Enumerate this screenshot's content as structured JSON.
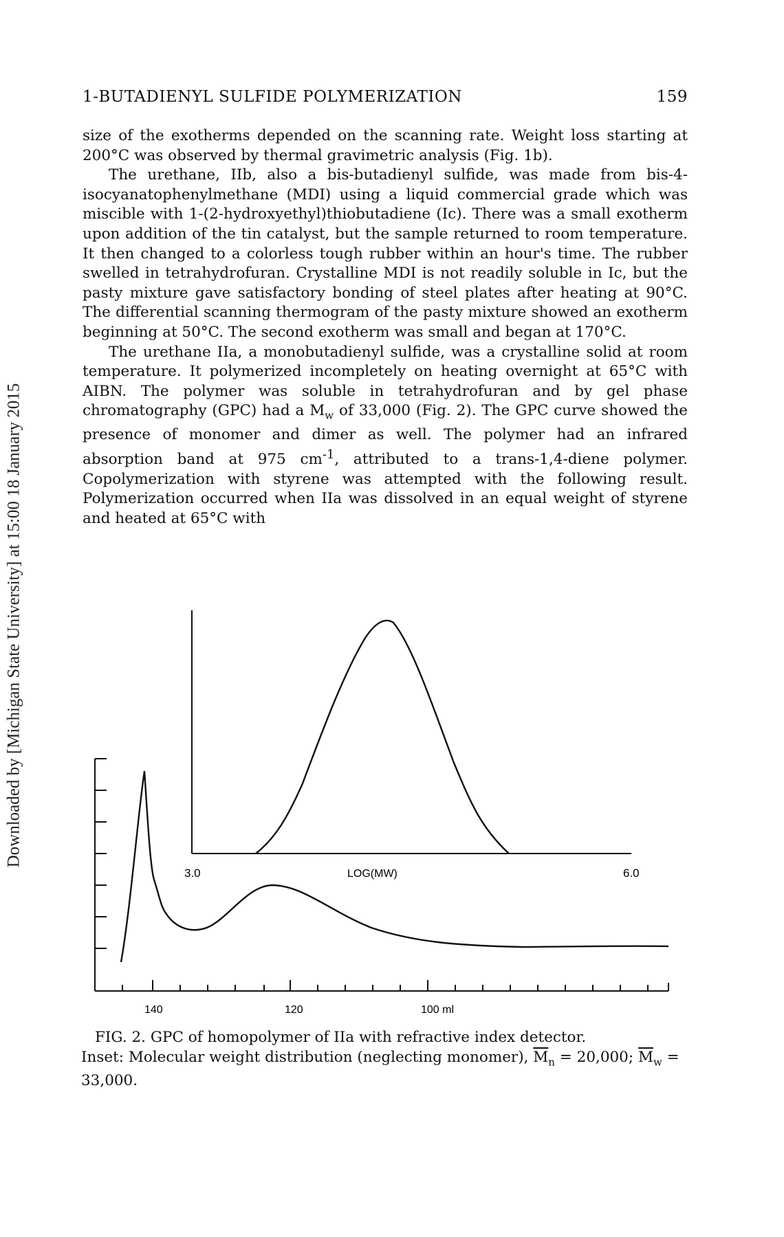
{
  "sidebar_text": "Downloaded by [Michigan State University] at 15:00 18 January 2015",
  "header": {
    "title": "1-BUTADIENYL SULFIDE POLYMERIZATION",
    "page_number": "159"
  },
  "body": {
    "p1": "size of the exotherms depended on the scanning rate. Weight loss starting at 200°C was observed by thermal gravimetric analysis (Fig. 1b).",
    "p2": "The urethane, IIb, also a bis-butadienyl sulfide, was made from bis-4-isocyanatophenylmethane (MDI) using a liquid commercial grade which was miscible with 1-(2-hydroxyethyl)thiobutadiene (Ic). There was a small exotherm upon addition of the tin catalyst, but the sample returned to room temperature. It then changed to a colorless tough rubber within an hour's time. The rubber swelled in tetrahydrofuran. Crystalline MDI is not readily soluble in Ic, but the pasty mixture gave satisfactory bonding of steel plates after heating at 90°C. The differential scanning thermogram of the pasty mixture showed an exotherm beginning at 50°C. The second exotherm was small and began at 170°C.",
    "p3_before": "The urethane IIa, a monobutadienyl sulfide, was a crystalline solid at room temperature. It polymerized incompletely on heating overnight at 65°C with AIBN. The polymer was soluble in tetrahydrofuran and by gel phase chromatography (GPC) had a M",
    "p3_sub": "w",
    "p3_mid": " of 33,000 (Fig. 2). The GPC curve showed the presence of monomer and dimer as well. The polymer had an infrared absorption band at 975 cm",
    "p3_sup": "-1",
    "p3_after": ", attributed to a trans-1,4-diene polymer. Copolymerization with styrene was attempted with the following result. Polymerization occurred when IIa was dissolved in an equal weight of styrene and heated at 65°C with"
  },
  "figure": {
    "main_x_labels": [
      "140",
      "120",
      "100 ml"
    ],
    "inset_x_labels": {
      "left": "3.0",
      "center": "LOG(MW)",
      "right": "6.0"
    }
  },
  "caption": {
    "c1": "FIG. 2. GPC of homopolymer of IIa with refractive index detector.",
    "c2": "Inset: Molecular weight distribution (neglecting monomer), ",
    "mn_letter": "M",
    "mn_sub": "n",
    "c3": " = 20,000; ",
    "mw_letter": "M",
    "mw_sub": "w",
    "c4": " = 33,000."
  }
}
